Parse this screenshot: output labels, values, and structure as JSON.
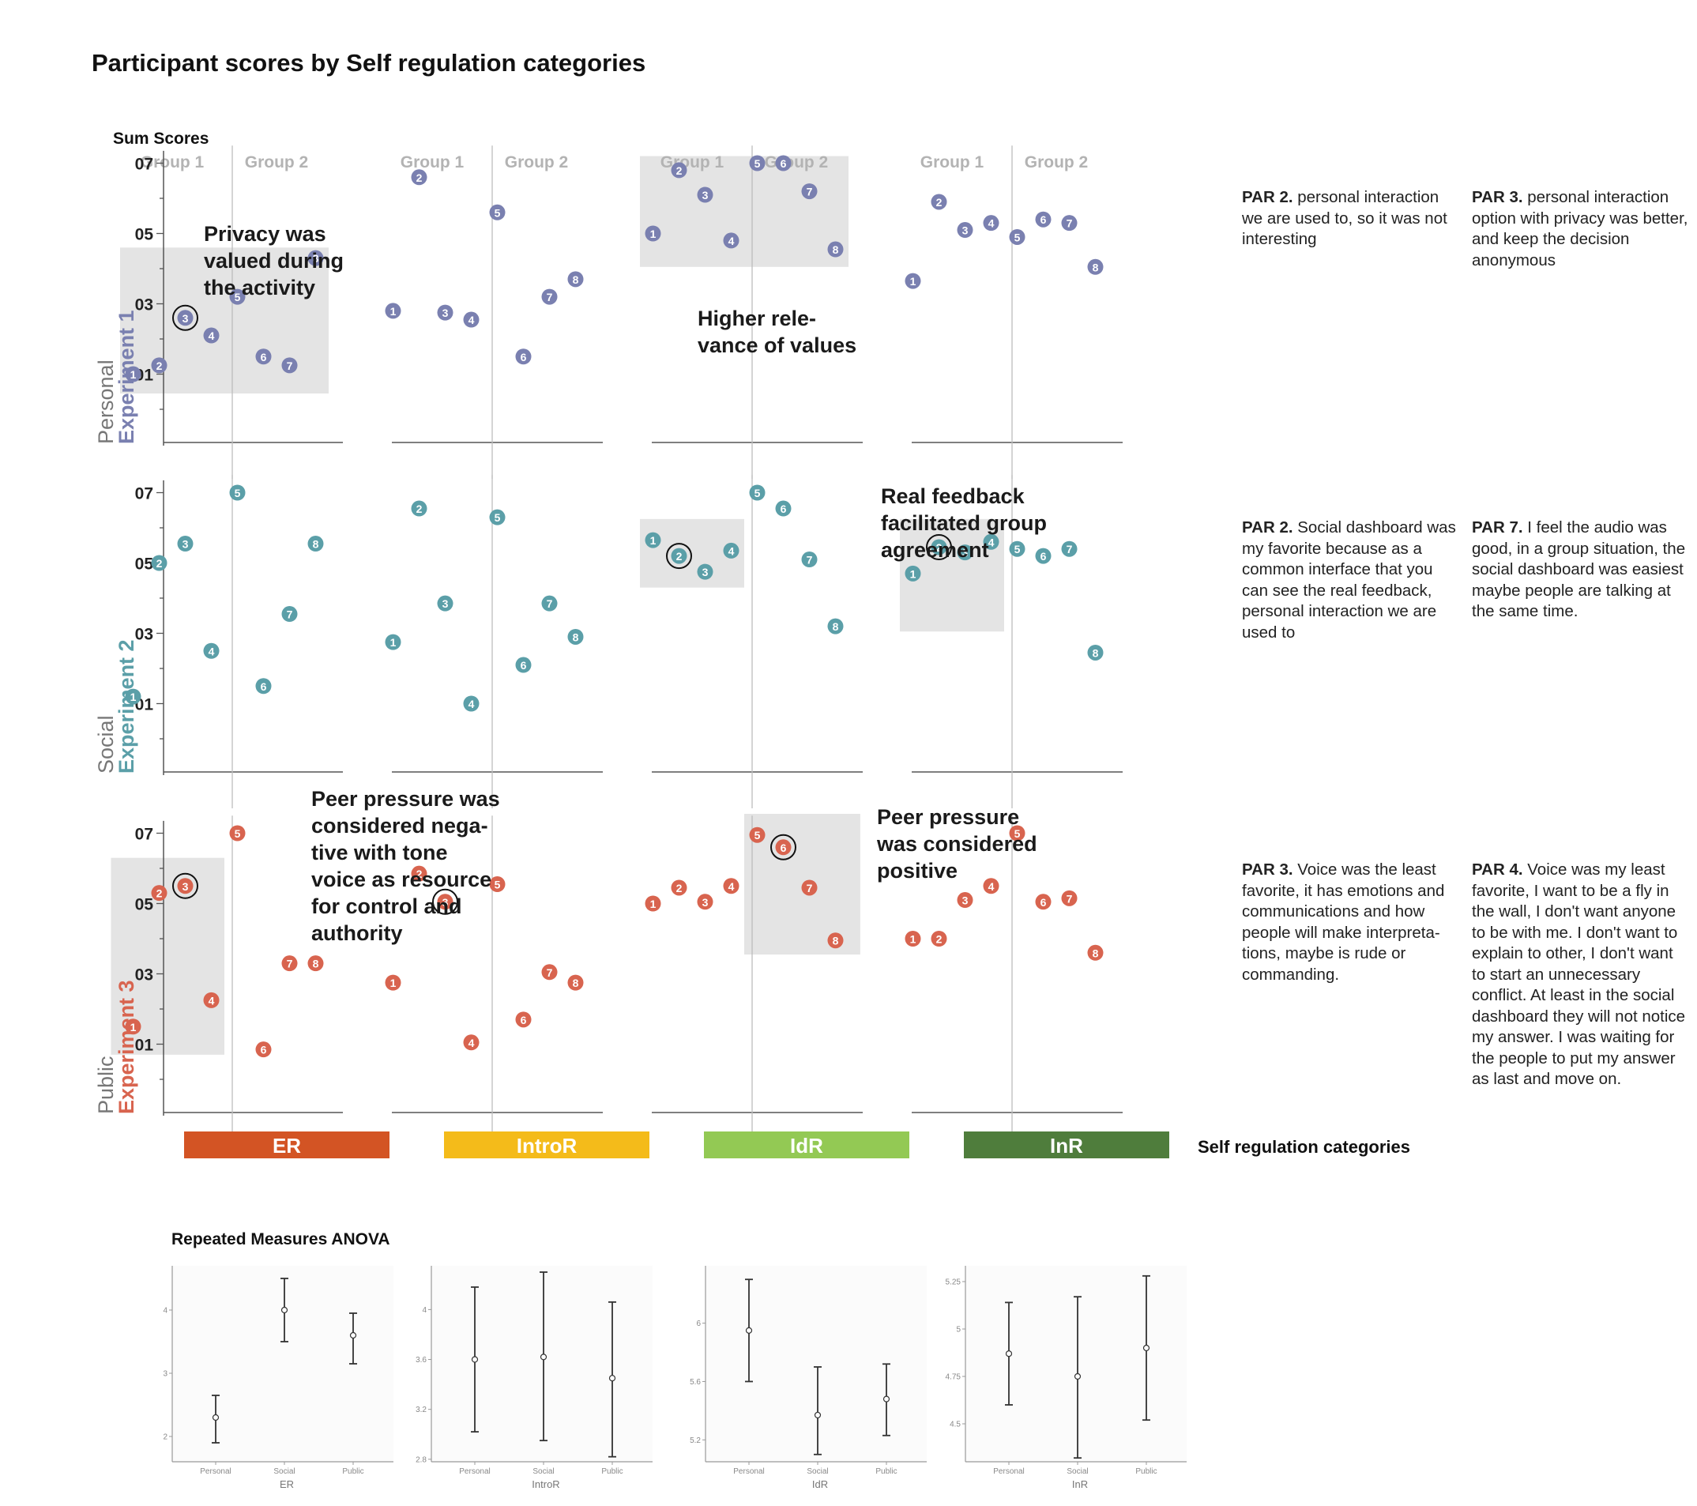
{
  "title": "Participant scores by Self regulation categories",
  "y_axis_title": "Sum Scores",
  "x_axis_title": "Self regulation categories",
  "anova_title": "Repeated Measures ANOVA",
  "colors": {
    "personal": "#7a80b0",
    "social": "#5b9fa8",
    "public": "#d8644f",
    "ER": "#d35424",
    "IntroR": "#f4bb1a",
    "IdR": "#93c954",
    "InR": "#4f7d3c",
    "highlight_box": "#e4e4e4"
  },
  "chart_data": [
    {
      "type": "scatter",
      "y_ticks": [
        "01",
        "03",
        "05",
        "07"
      ],
      "ylim": [
        0,
        7.2
      ],
      "group_labels": [
        "Group 1",
        "Group 2"
      ],
      "categories": [
        "ER",
        "IntroR",
        "IdR",
        "InR"
      ],
      "rows": [
        {
          "condition": "Personal",
          "experiment": "Experiment 1",
          "panels": [
            {
              "category": "ER",
              "scores": [
                1.0,
                1.25,
                2.6,
                2.1,
                3.2,
                1.5,
                1.25,
                4.3
              ],
              "circled": [
                3
              ],
              "box": {
                "from_pos": 0.5,
                "to_pos": 8.5,
                "y": [
                  0.45,
                  4.6
                ]
              }
            },
            {
              "category": "IntroR",
              "scores": [
                2.8,
                6.6,
                2.75,
                2.55,
                5.6,
                1.5,
                3.2,
                3.7
              ]
            },
            {
              "category": "IdR",
              "scores": [
                5.0,
                6.8,
                6.1,
                4.8,
                7.0,
                7.0,
                6.2,
                4.55
              ],
              "box": {
                "from_pos": 0.5,
                "to_pos": 8.5,
                "y": [
                  4.05,
                  7.2
                ]
              }
            },
            {
              "category": "InR",
              "scores": [
                3.65,
                5.9,
                5.1,
                5.3,
                4.9,
                5.4,
                5.3,
                4.05
              ]
            }
          ]
        },
        {
          "condition": "Social",
          "experiment": "Experiment 2",
          "panels": [
            {
              "category": "ER",
              "scores": [
                1.2,
                5.0,
                5.55,
                2.5,
                7.0,
                1.5,
                3.55,
                5.55
              ]
            },
            {
              "category": "IntroR",
              "scores": [
                2.75,
                6.55,
                3.85,
                1.0,
                6.3,
                2.1,
                3.85,
                2.9
              ]
            },
            {
              "category": "IdR",
              "scores": [
                5.65,
                5.2,
                4.75,
                5.35,
                7.0,
                6.55,
                5.1,
                3.2
              ],
              "circled": [
                2
              ],
              "box": {
                "from_pos": 0.5,
                "to_pos": 4.5,
                "y": [
                  4.3,
                  6.25
                ]
              }
            },
            {
              "category": "InR",
              "scores": [
                4.7,
                5.45,
                5.3,
                5.6,
                5.4,
                5.2,
                5.4,
                2.45
              ],
              "circled": [
                2
              ],
              "box": {
                "from_pos": 0.5,
                "to_pos": 4.5,
                "y": [
                  3.05,
                  6.25
                ]
              }
            }
          ]
        },
        {
          "condition": "Public",
          "experiment": "Experiment 3",
          "panels": [
            {
              "category": "ER",
              "scores": [
                1.5,
                5.3,
                5.5,
                2.25,
                7.0,
                0.85,
                3.3,
                3.3
              ],
              "circled": [
                3
              ],
              "box": {
                "from_pos": 0.15,
                "to_pos": 4.5,
                "y": [
                  0.7,
                  6.3
                ]
              }
            },
            {
              "category": "IntroR",
              "scores": [
                2.75,
                5.85,
                5.05,
                1.05,
                5.55,
                1.7,
                3.05,
                2.75
              ],
              "circled": [
                3
              ]
            },
            {
              "category": "IdR",
              "scores": [
                5.0,
                5.45,
                5.05,
                5.5,
                6.95,
                6.6,
                5.45,
                3.95
              ],
              "circled": [
                6
              ],
              "box": {
                "from_pos": 4.5,
                "to_pos": 8.95,
                "y": [
                  3.55,
                  7.55
                ]
              }
            },
            {
              "category": "InR",
              "scores": [
                4.0,
                4.0,
                5.1,
                5.5,
                7.0,
                5.05,
                5.15,
                3.6
              ]
            }
          ]
        }
      ],
      "annotations": [
        {
          "id": "privacy",
          "lines": [
            "Privacy was",
            "valued during",
            "the activity"
          ]
        },
        {
          "id": "relevance",
          "lines": [
            "Higher rele-",
            "vance of values"
          ]
        },
        {
          "id": "feedback",
          "lines": [
            "Real feedback",
            "facilitated group",
            "agreement"
          ]
        },
        {
          "id": "peer-negative",
          "lines": [
            "Peer pressure was",
            "considered nega-",
            "tive with tone",
            "voice as resource",
            "for control and",
            "authority"
          ]
        },
        {
          "id": "peer-positive",
          "lines": [
            "Peer pressure",
            "was considered",
            "positive"
          ]
        }
      ]
    },
    {
      "type": "error-bar",
      "title": "Repeated Measures ANOVA",
      "categories": [
        "Personal",
        "Social",
        "Public"
      ],
      "panels": [
        {
          "xlabel": "ER",
          "y_ticks": [
            2,
            3,
            4
          ],
          "ylim": [
            1.6,
            4.6
          ],
          "means": [
            2.3,
            4.0,
            3.6
          ],
          "lower": [
            1.9,
            3.5,
            3.15
          ],
          "upper": [
            2.65,
            4.5,
            3.95
          ]
        },
        {
          "xlabel": "IntroR",
          "y_ticks": [
            2.8,
            3.2,
            3.6,
            4.0
          ],
          "ylim": [
            2.78,
            4.3
          ],
          "means": [
            3.6,
            3.62,
            3.45
          ],
          "lower": [
            3.02,
            2.95,
            2.82
          ],
          "upper": [
            4.18,
            4.3,
            4.06
          ]
        },
        {
          "xlabel": "IdR",
          "y_ticks": [
            5.2,
            5.6,
            6.0
          ],
          "ylim": [
            5.05,
            6.35
          ],
          "means": [
            5.95,
            5.37,
            5.48
          ],
          "lower": [
            5.6,
            5.1,
            5.23
          ],
          "upper": [
            6.3,
            5.7,
            5.72
          ]
        },
        {
          "xlabel": "InR",
          "y_ticks": [
            4.5,
            4.75,
            5.0,
            5.25
          ],
          "ylim": [
            4.3,
            5.3
          ],
          "means": [
            4.87,
            4.75,
            4.9
          ],
          "lower": [
            4.6,
            4.32,
            4.52
          ],
          "upper": [
            5.14,
            5.17,
            5.28
          ]
        }
      ]
    }
  ],
  "quotes": [
    {
      "par": "PAR 2.",
      "text": " personal interaction we are used to, so it was not interesting"
    },
    {
      "par": "PAR 3.",
      "text": " personal interaction option with privacy was better, and keep the decision anonymous"
    },
    {
      "par": "PAR 2.",
      "text": " Social dashboard was my favorite because as a common interface that you can see the real feedback, personal interaction  we are used to"
    },
    {
      "par": "PAR 7.",
      "text": " I feel the audio was good, in a group situation, the social dashboard was easiest maybe people are talking at the same time."
    },
    {
      "par": "PAR 3.",
      "text": " Voice was the least favorite, it has emotions and communications and how people will make interpreta-tions, maybe is rude or commanding."
    },
    {
      "par": "PAR 4.",
      "text": " Voice was my least favorite, I want to be a fly in the wall, I don't want anyone to be with me. I don't want to explain to other, I don't want to start an unnecessary conflict. At least in the social dashboard they will not notice my answer. I was waiting for the people to put my answer as last and move on."
    }
  ]
}
